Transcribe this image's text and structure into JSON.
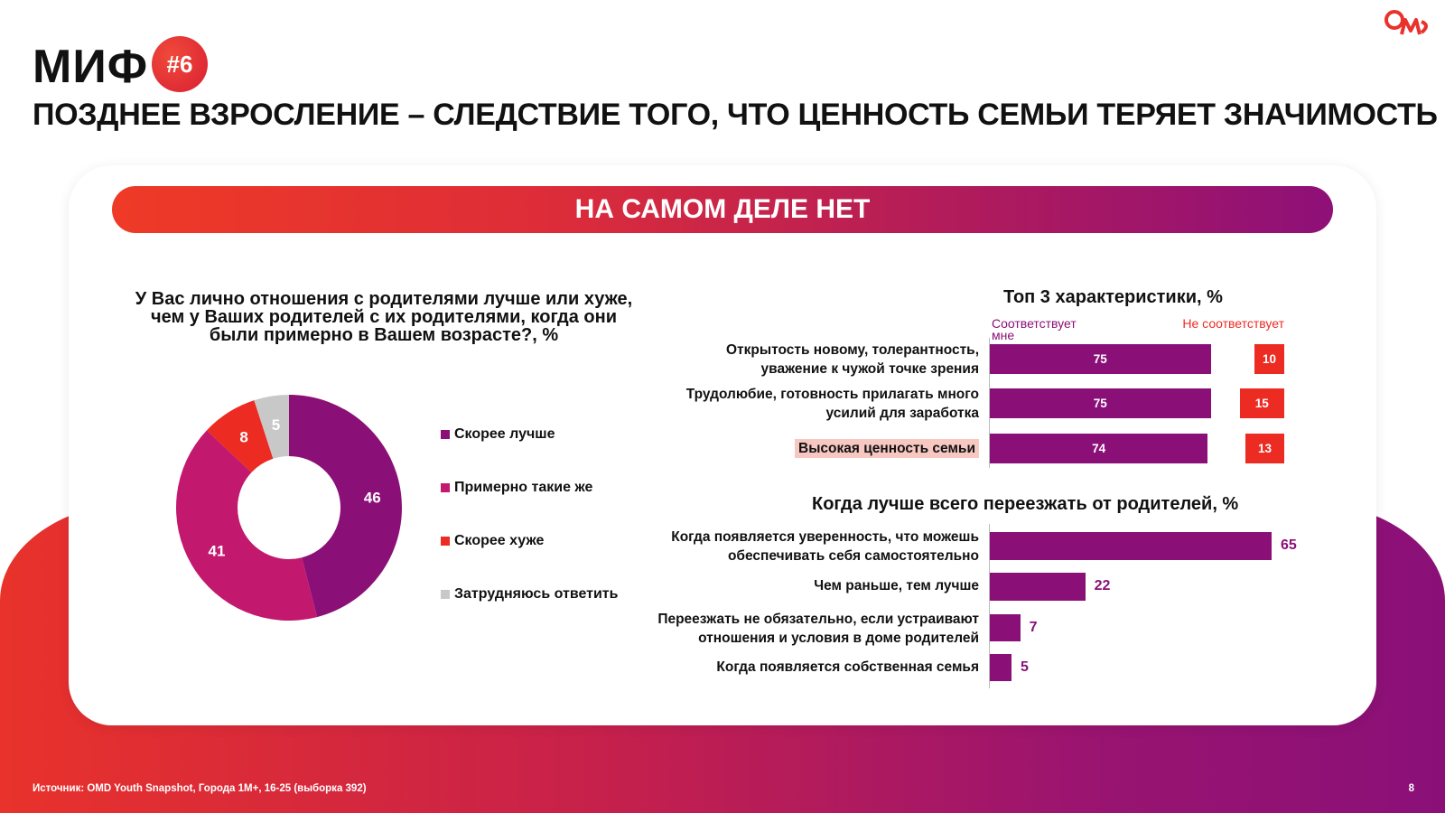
{
  "logo_text": "OMD",
  "myth": {
    "title": "МИФ",
    "badge": "#6"
  },
  "headline": "ПОЗДНЕЕ ВЗРОСЛЕНИЕ – СЛЕДСТВИЕ ТОГО, ЧТО ЦЕННОСТЬ СЕМЬИ ТЕРЯЕТ ЗНАЧИМОСТЬ",
  "banner": "НА САМОМ ДЕЛЕ НЕТ",
  "colors": {
    "purple": "#8a1078",
    "magenta": "#c2186d",
    "red": "#ec2c23",
    "grey": "#c8c8c8"
  },
  "chart_data": [
    {
      "type": "pie",
      "variant": "donut",
      "title_lines": [
        "У Вас лично отношения с родителями лучше или хуже,",
        "чем у Ваших родителей с их родителями, когда они",
        "были примерно в Вашем возрасте?, %"
      ],
      "categories": [
        "Скорее лучше",
        "Примерно такие же",
        "Скорее хуже",
        "Затрудняюсь ответить"
      ],
      "values": [
        46,
        41,
        8,
        5
      ],
      "colors": [
        "#8a1078",
        "#c2186d",
        "#ec2c23",
        "#c8c8c8"
      ],
      "legend": "right"
    },
    {
      "type": "bar",
      "orientation": "horizontal",
      "title": "Топ 3 характеристики, %",
      "column_headers": {
        "match": "Соответствует мне",
        "no_match": "Не соответствует"
      },
      "categories": [
        "Открытость новому, толерантность, уважение к чужой точке зрения",
        "Трудолюбие, готовность прилагать много усилий для заработка",
        "Высокая ценность семьи"
      ],
      "category_lines": [
        [
          "Открытость новому, толерантность,",
          "уважение к чужой точке зрения"
        ],
        [
          "Трудолюбие, готовность прилагать много",
          "усилий для заработка"
        ],
        [
          "Высокая ценность семьи"
        ]
      ],
      "highlight_index": 2,
      "series": [
        {
          "name": "Соответствует мне",
          "values": [
            75,
            75,
            74
          ],
          "color": "#8a1078"
        },
        {
          "name": "Не соответствует",
          "values": [
            10,
            15,
            13
          ],
          "color": "#ec2c23"
        }
      ]
    },
    {
      "type": "bar",
      "orientation": "horizontal",
      "title": "Когда лучше всего переезжать от родителей, %",
      "categories": [
        "Когда появляется уверенность, что можешь обеспечивать себя самостоятельно",
        "Чем раньше, тем лучше",
        "Переезжать не обязательно, если устраивают отношения и условия в доме родителей",
        "Когда появляется собственная семья"
      ],
      "category_lines": [
        [
          "Когда появляется уверенность, что можешь",
          "обеспечивать себя самостоятельно"
        ],
        [
          "Чем раньше, тем лучше"
        ],
        [
          "Переезжать не обязательно, если устраивают",
          "отношения и условия в доме родителей"
        ],
        [
          "Когда появляется собственная семья"
        ]
      ],
      "values": [
        65,
        22,
        7,
        5
      ],
      "color": "#8a1078"
    }
  ],
  "footer": {
    "source": "Источник: OMD Youth Snapshot, Города 1M+, 16-25 (выборка 392)",
    "page": "8"
  }
}
